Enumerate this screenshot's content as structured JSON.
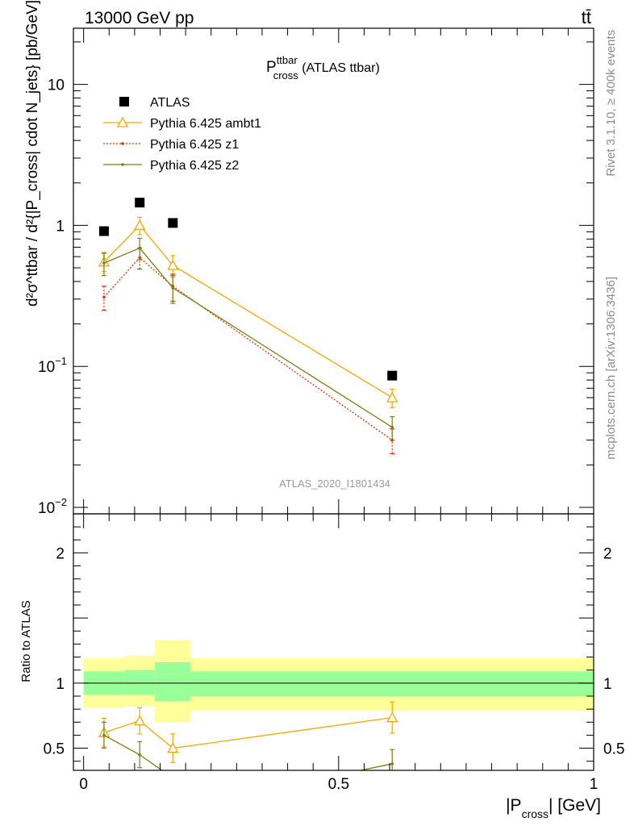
{
  "header": {
    "energy_label": "13000 GeV pp",
    "process_label": "tt̄"
  },
  "side_labels": {
    "rivet": "Rivet 3.1.10, ≥ 400k events",
    "mcplots": "mcplots.cern.ch [arXiv:1306.3436]"
  },
  "chart_data": [
    {
      "type": "line",
      "panel": "main",
      "title": "P_cross^ttbar (ATLAS ttbar)",
      "title_main": "P",
      "title_sup": "ttbar",
      "title_sub": "cross",
      "title_rest": " (ATLAS ttbar)",
      "ylabel": "d²σ^ttbar / d²{|P_cross| cdot N_jets} [pb/GeV]",
      "watermark": "ATLAS_2020_I1801434",
      "yscale": "log",
      "ylim": [
        0.009,
        25
      ],
      "xlim": [
        -0.02,
        1.0
      ],
      "ytick_labels": [
        "10",
        "1",
        "10−1",
        "10−2"
      ],
      "legend_placement": "top-left",
      "series": [
        {
          "name": "ATLAS",
          "style": "data",
          "color": "#000000",
          "x": [
            0.04,
            0.11,
            0.175,
            0.605
          ],
          "y": [
            0.91,
            1.45,
            1.04,
            0.086
          ]
        },
        {
          "name": "Pythia 6.425 ambt1",
          "style": "triangle-line",
          "color": "#f0a800",
          "x": [
            0.04,
            0.11,
            0.175,
            0.605
          ],
          "y": [
            0.55,
            1.0,
            0.52,
            0.06
          ],
          "yerr": [
            0.08,
            0.14,
            0.09,
            0.009
          ]
        },
        {
          "name": "Pythia 6.425 z1",
          "style": "dotted",
          "color": "#e03000",
          "x": [
            0.04,
            0.11,
            0.175,
            0.605
          ],
          "y": [
            0.31,
            0.59,
            0.37,
            0.03
          ],
          "yerr": [
            0.06,
            0.1,
            0.08,
            0.006
          ]
        },
        {
          "name": "Pythia 6.425 z2",
          "style": "solid",
          "color": "#7a8010",
          "x": [
            0.04,
            0.11,
            0.175,
            0.605
          ],
          "y": [
            0.54,
            0.69,
            0.36,
            0.037
          ],
          "yerr": [
            0.1,
            0.12,
            0.08,
            0.007
          ]
        }
      ]
    },
    {
      "type": "line",
      "panel": "ratio",
      "ylabel": "Ratio to ATLAS",
      "xlabel": "|P_cross| [GeV]",
      "xlabel_pre": "|P",
      "xlabel_sub": "cross",
      "xlabel_post": "| [GeV]",
      "xlim": [
        -0.02,
        1.0
      ],
      "ylim": [
        0.33,
        2.3
      ],
      "xtick_labels": [
        "0",
        "0.5",
        "1"
      ],
      "ytick_labels": [
        "2",
        "1",
        "0.5"
      ],
      "bands": {
        "bin_edges": [
          0.0,
          0.08,
          0.14,
          0.21,
          1.0
        ],
        "outer": [
          [
            0.81,
            1.19
          ],
          [
            0.82,
            1.21
          ],
          [
            0.7,
            1.33
          ],
          [
            0.79,
            1.19
          ]
        ],
        "inner": [
          [
            0.91,
            1.09
          ],
          [
            0.91,
            1.1
          ],
          [
            0.86,
            1.16
          ],
          [
            0.9,
            1.09
          ]
        ],
        "outer_color": "#ffff99",
        "inner_color": "#99ff99"
      },
      "series": [
        {
          "name": "Pythia 6.425 ambt1",
          "color": "#f0a800",
          "x": [
            0.04,
            0.11,
            0.175,
            0.605
          ],
          "y": [
            0.62,
            0.71,
            0.5,
            0.735
          ],
          "yerr": [
            0.11,
            0.1,
            0.11,
            0.12
          ]
        },
        {
          "name": "Pythia 6.425 z2",
          "color": "#7a8010",
          "x": [
            0.04,
            0.11,
            0.175,
            0.53,
            0.605
          ],
          "y": [
            0.6,
            0.45,
            0.27,
            0.32,
            0.38
          ],
          "yerr": [
            0.1,
            0.1,
            0.0,
            0.0,
            0.11
          ]
        }
      ]
    }
  ]
}
